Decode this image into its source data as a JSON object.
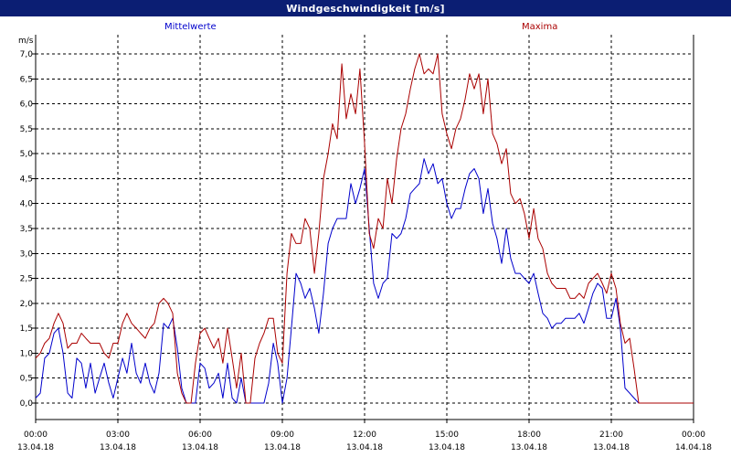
{
  "window": {
    "title": "Windgeschwindigkeit [m/s]"
  },
  "chart_data": {
    "type": "line",
    "title": "Windgeschwindigkeit [m/s]",
    "ylabel": "m/s",
    "xlabel": "",
    "ylim": [
      0,
      7.0
    ],
    "xlim_hours": [
      0,
      24
    ],
    "grid": true,
    "y_ticks": [
      "0,0",
      "0,5",
      "1,0",
      "1,5",
      "2,0",
      "2,5",
      "3,0",
      "3,5",
      "4,0",
      "4,5",
      "5,0",
      "5,5",
      "6,0",
      "6,5",
      "7,0"
    ],
    "x_ticks": [
      {
        "time": "00:00",
        "date": "13.04.18"
      },
      {
        "time": "03:00",
        "date": "13.04.18"
      },
      {
        "time": "06:00",
        "date": "13.04.18"
      },
      {
        "time": "09:00",
        "date": "13.04.18"
      },
      {
        "time": "12:00",
        "date": "13.04.18"
      },
      {
        "time": "15:00",
        "date": "13.04.18"
      },
      {
        "time": "18:00",
        "date": "13.04.18"
      },
      {
        "time": "21:00",
        "date": "13.04.18"
      },
      {
        "time": "00:00",
        "date": "14.04.18"
      }
    ],
    "series": [
      {
        "name": "Mittelwerte",
        "color": "#0000cc",
        "points": [
          [
            0.0,
            0.1
          ],
          [
            0.17,
            0.2
          ],
          [
            0.33,
            0.9
          ],
          [
            0.5,
            1.0
          ],
          [
            0.67,
            1.4
          ],
          [
            0.83,
            1.5
          ],
          [
            1.0,
            1.0
          ],
          [
            1.17,
            0.2
          ],
          [
            1.33,
            0.1
          ],
          [
            1.5,
            0.9
          ],
          [
            1.67,
            0.8
          ],
          [
            1.83,
            0.3
          ],
          [
            2.0,
            0.8
          ],
          [
            2.17,
            0.2
          ],
          [
            2.33,
            0.5
          ],
          [
            2.5,
            0.8
          ],
          [
            2.67,
            0.4
          ],
          [
            2.83,
            0.1
          ],
          [
            3.0,
            0.5
          ],
          [
            3.17,
            0.9
          ],
          [
            3.33,
            0.6
          ],
          [
            3.5,
            1.2
          ],
          [
            3.67,
            0.6
          ],
          [
            3.83,
            0.4
          ],
          [
            4.0,
            0.8
          ],
          [
            4.17,
            0.4
          ],
          [
            4.33,
            0.2
          ],
          [
            4.5,
            0.6
          ],
          [
            4.67,
            1.6
          ],
          [
            4.83,
            1.5
          ],
          [
            5.0,
            1.7
          ],
          [
            5.17,
            1.1
          ],
          [
            5.33,
            0.3
          ],
          [
            5.5,
            0.0
          ],
          [
            5.67,
            0.0
          ],
          [
            5.83,
            0.0
          ],
          [
            6.0,
            0.8
          ],
          [
            6.17,
            0.7
          ],
          [
            6.33,
            0.3
          ],
          [
            6.5,
            0.4
          ],
          [
            6.67,
            0.6
          ],
          [
            6.83,
            0.1
          ],
          [
            7.0,
            0.8
          ],
          [
            7.17,
            0.1
          ],
          [
            7.33,
            0.0
          ],
          [
            7.5,
            0.5
          ],
          [
            7.67,
            0.0
          ],
          [
            7.83,
            0.0
          ],
          [
            8.0,
            0.0
          ],
          [
            8.17,
            0.0
          ],
          [
            8.33,
            0.0
          ],
          [
            8.5,
            0.4
          ],
          [
            8.67,
            1.2
          ],
          [
            8.83,
            0.8
          ],
          [
            9.0,
            0.0
          ],
          [
            9.17,
            0.5
          ],
          [
            9.33,
            1.5
          ],
          [
            9.5,
            2.6
          ],
          [
            9.67,
            2.4
          ],
          [
            9.83,
            2.1
          ],
          [
            10.0,
            2.3
          ],
          [
            10.17,
            1.9
          ],
          [
            10.33,
            1.4
          ],
          [
            10.5,
            2.2
          ],
          [
            10.67,
            3.2
          ],
          [
            10.83,
            3.5
          ],
          [
            11.0,
            3.7
          ],
          [
            11.17,
            3.7
          ],
          [
            11.33,
            3.7
          ],
          [
            11.5,
            4.4
          ],
          [
            11.67,
            4.0
          ],
          [
            11.83,
            4.3
          ],
          [
            12.0,
            4.7
          ],
          [
            12.17,
            3.5
          ],
          [
            12.33,
            2.4
          ],
          [
            12.5,
            2.1
          ],
          [
            12.67,
            2.4
          ],
          [
            12.83,
            2.5
          ],
          [
            13.0,
            3.4
          ],
          [
            13.17,
            3.3
          ],
          [
            13.33,
            3.4
          ],
          [
            13.5,
            3.7
          ],
          [
            13.67,
            4.2
          ],
          [
            13.83,
            4.3
          ],
          [
            14.0,
            4.4
          ],
          [
            14.17,
            4.9
          ],
          [
            14.33,
            4.6
          ],
          [
            14.5,
            4.8
          ],
          [
            14.67,
            4.4
          ],
          [
            14.83,
            4.5
          ],
          [
            15.0,
            4.0
          ],
          [
            15.17,
            3.7
          ],
          [
            15.33,
            3.9
          ],
          [
            15.5,
            3.9
          ],
          [
            15.67,
            4.3
          ],
          [
            15.83,
            4.6
          ],
          [
            16.0,
            4.7
          ],
          [
            16.17,
            4.5
          ],
          [
            16.33,
            3.8
          ],
          [
            16.5,
            4.3
          ],
          [
            16.67,
            3.6
          ],
          [
            16.83,
            3.3
          ],
          [
            17.0,
            2.8
          ],
          [
            17.17,
            3.5
          ],
          [
            17.33,
            2.9
          ],
          [
            17.5,
            2.6
          ],
          [
            17.67,
            2.6
          ],
          [
            17.83,
            2.5
          ],
          [
            18.0,
            2.4
          ],
          [
            18.17,
            2.6
          ],
          [
            18.33,
            2.2
          ],
          [
            18.5,
            1.8
          ],
          [
            18.67,
            1.7
          ],
          [
            18.83,
            1.5
          ],
          [
            19.0,
            1.6
          ],
          [
            19.17,
            1.6
          ],
          [
            19.33,
            1.7
          ],
          [
            19.5,
            1.7
          ],
          [
            19.67,
            1.7
          ],
          [
            19.83,
            1.8
          ],
          [
            20.0,
            1.6
          ],
          [
            20.17,
            1.9
          ],
          [
            20.33,
            2.2
          ],
          [
            20.5,
            2.4
          ],
          [
            20.67,
            2.3
          ],
          [
            20.83,
            1.7
          ],
          [
            21.0,
            1.7
          ],
          [
            21.17,
            2.1
          ],
          [
            21.33,
            1.5
          ],
          [
            21.5,
            0.3
          ],
          [
            21.67,
            0.2
          ],
          [
            21.83,
            0.1
          ],
          [
            22.0,
            0.0
          ],
          [
            22.5,
            0.0
          ],
          [
            23.0,
            0.0
          ],
          [
            23.5,
            0.0
          ],
          [
            24.0,
            0.0
          ]
        ]
      },
      {
        "name": "Maxima",
        "color": "#aa0000",
        "points": [
          [
            0.0,
            0.9
          ],
          [
            0.17,
            1.0
          ],
          [
            0.33,
            1.2
          ],
          [
            0.5,
            1.3
          ],
          [
            0.67,
            1.6
          ],
          [
            0.83,
            1.8
          ],
          [
            1.0,
            1.6
          ],
          [
            1.17,
            1.1
          ],
          [
            1.33,
            1.2
          ],
          [
            1.5,
            1.2
          ],
          [
            1.67,
            1.4
          ],
          [
            1.83,
            1.3
          ],
          [
            2.0,
            1.2
          ],
          [
            2.17,
            1.2
          ],
          [
            2.33,
            1.2
          ],
          [
            2.5,
            1.0
          ],
          [
            2.67,
            0.9
          ],
          [
            2.83,
            1.2
          ],
          [
            3.0,
            1.2
          ],
          [
            3.17,
            1.6
          ],
          [
            3.33,
            1.8
          ],
          [
            3.5,
            1.6
          ],
          [
            3.67,
            1.5
          ],
          [
            3.83,
            1.4
          ],
          [
            4.0,
            1.3
          ],
          [
            4.17,
            1.5
          ],
          [
            4.33,
            1.6
          ],
          [
            4.5,
            2.0
          ],
          [
            4.67,
            2.1
          ],
          [
            4.83,
            2.0
          ],
          [
            5.0,
            1.8
          ],
          [
            5.17,
            0.6
          ],
          [
            5.33,
            0.2
          ],
          [
            5.5,
            0.0
          ],
          [
            5.67,
            0.0
          ],
          [
            5.83,
            0.8
          ],
          [
            6.0,
            1.4
          ],
          [
            6.17,
            1.5
          ],
          [
            6.33,
            1.3
          ],
          [
            6.5,
            1.1
          ],
          [
            6.67,
            1.3
          ],
          [
            6.83,
            0.8
          ],
          [
            7.0,
            1.5
          ],
          [
            7.17,
            0.9
          ],
          [
            7.33,
            0.3
          ],
          [
            7.5,
            1.0
          ],
          [
            7.67,
            0.0
          ],
          [
            7.83,
            0.0
          ],
          [
            8.0,
            0.9
          ],
          [
            8.17,
            1.2
          ],
          [
            8.33,
            1.4
          ],
          [
            8.5,
            1.7
          ],
          [
            8.67,
            1.7
          ],
          [
            8.83,
            1.0
          ],
          [
            9.0,
            0.8
          ],
          [
            9.17,
            2.6
          ],
          [
            9.33,
            3.4
          ],
          [
            9.5,
            3.2
          ],
          [
            9.67,
            3.2
          ],
          [
            9.83,
            3.7
          ],
          [
            10.0,
            3.5
          ],
          [
            10.17,
            2.6
          ],
          [
            10.33,
            3.4
          ],
          [
            10.5,
            4.5
          ],
          [
            10.67,
            5.0
          ],
          [
            10.83,
            5.6
          ],
          [
            11.0,
            5.3
          ],
          [
            11.17,
            6.8
          ],
          [
            11.33,
            5.7
          ],
          [
            11.5,
            6.2
          ],
          [
            11.67,
            5.8
          ],
          [
            11.83,
            6.7
          ],
          [
            12.0,
            5.2
          ],
          [
            12.17,
            3.4
          ],
          [
            12.33,
            3.1
          ],
          [
            12.5,
            3.7
          ],
          [
            12.67,
            3.5
          ],
          [
            12.83,
            4.5
          ],
          [
            13.0,
            4.0
          ],
          [
            13.17,
            4.9
          ],
          [
            13.33,
            5.5
          ],
          [
            13.5,
            5.8
          ],
          [
            13.67,
            6.3
          ],
          [
            13.83,
            6.7
          ],
          [
            14.0,
            7.0
          ],
          [
            14.17,
            6.6
          ],
          [
            14.33,
            6.7
          ],
          [
            14.5,
            6.6
          ],
          [
            14.67,
            7.0
          ],
          [
            14.83,
            5.8
          ],
          [
            15.0,
            5.4
          ],
          [
            15.17,
            5.1
          ],
          [
            15.33,
            5.5
          ],
          [
            15.5,
            5.7
          ],
          [
            15.67,
            6.1
          ],
          [
            15.83,
            6.6
          ],
          [
            16.0,
            6.3
          ],
          [
            16.17,
            6.6
          ],
          [
            16.33,
            5.8
          ],
          [
            16.5,
            6.5
          ],
          [
            16.67,
            5.4
          ],
          [
            16.83,
            5.2
          ],
          [
            17.0,
            4.8
          ],
          [
            17.17,
            5.1
          ],
          [
            17.33,
            4.2
          ],
          [
            17.5,
            4.0
          ],
          [
            17.67,
            4.1
          ],
          [
            17.83,
            3.8
          ],
          [
            18.0,
            3.3
          ],
          [
            18.17,
            3.9
          ],
          [
            18.33,
            3.3
          ],
          [
            18.5,
            3.1
          ],
          [
            18.67,
            2.6
          ],
          [
            18.83,
            2.4
          ],
          [
            19.0,
            2.3
          ],
          [
            19.17,
            2.3
          ],
          [
            19.33,
            2.3
          ],
          [
            19.5,
            2.1
          ],
          [
            19.67,
            2.1
          ],
          [
            19.83,
            2.2
          ],
          [
            20.0,
            2.1
          ],
          [
            20.17,
            2.4
          ],
          [
            20.33,
            2.5
          ],
          [
            20.5,
            2.6
          ],
          [
            20.67,
            2.4
          ],
          [
            20.83,
            2.2
          ],
          [
            21.0,
            2.6
          ],
          [
            21.17,
            2.3
          ],
          [
            21.33,
            1.6
          ],
          [
            21.5,
            1.2
          ],
          [
            21.67,
            1.3
          ],
          [
            21.83,
            0.7
          ],
          [
            22.0,
            0.0
          ],
          [
            22.5,
            0.0
          ],
          [
            23.0,
            0.0
          ],
          [
            23.5,
            0.0
          ],
          [
            24.0,
            0.0
          ]
        ]
      }
    ]
  }
}
